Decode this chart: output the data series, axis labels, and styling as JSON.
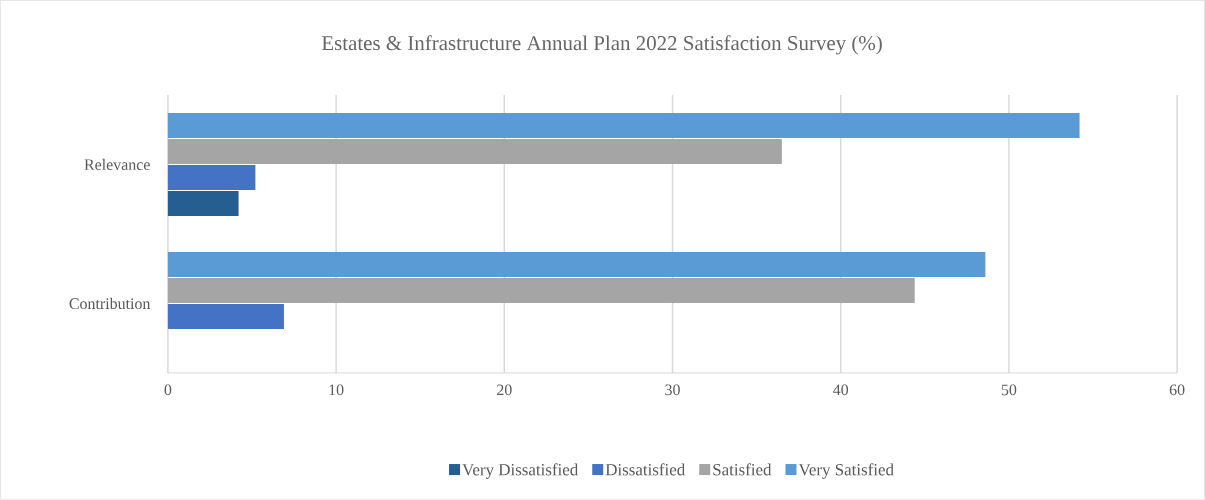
{
  "chart_data": {
    "type": "bar",
    "orientation": "horizontal",
    "title": "Estates & Infrastructure Annual Plan 2022 Satisfaction Survey (%)",
    "categories": [
      "Relevance",
      "Contribution"
    ],
    "series": [
      {
        "name": "Very Dissatisfied",
        "color": "#255e91",
        "values": [
          4.2,
          null
        ]
      },
      {
        "name": "Dissatisfied",
        "color": "#4472c4",
        "values": [
          5.2,
          6.9
        ]
      },
      {
        "name": "Satisfied",
        "color": "#a5a5a5",
        "values": [
          36.5,
          44.4
        ]
      },
      {
        "name": "Very Satisfied",
        "color": "#5b9bd5",
        "values": [
          54.2,
          48.6
        ]
      }
    ],
    "xlim": [
      0,
      60
    ],
    "xticks": [
      0,
      10,
      20,
      30,
      40,
      50,
      60
    ],
    "grid": "x",
    "legend": "bottom"
  }
}
